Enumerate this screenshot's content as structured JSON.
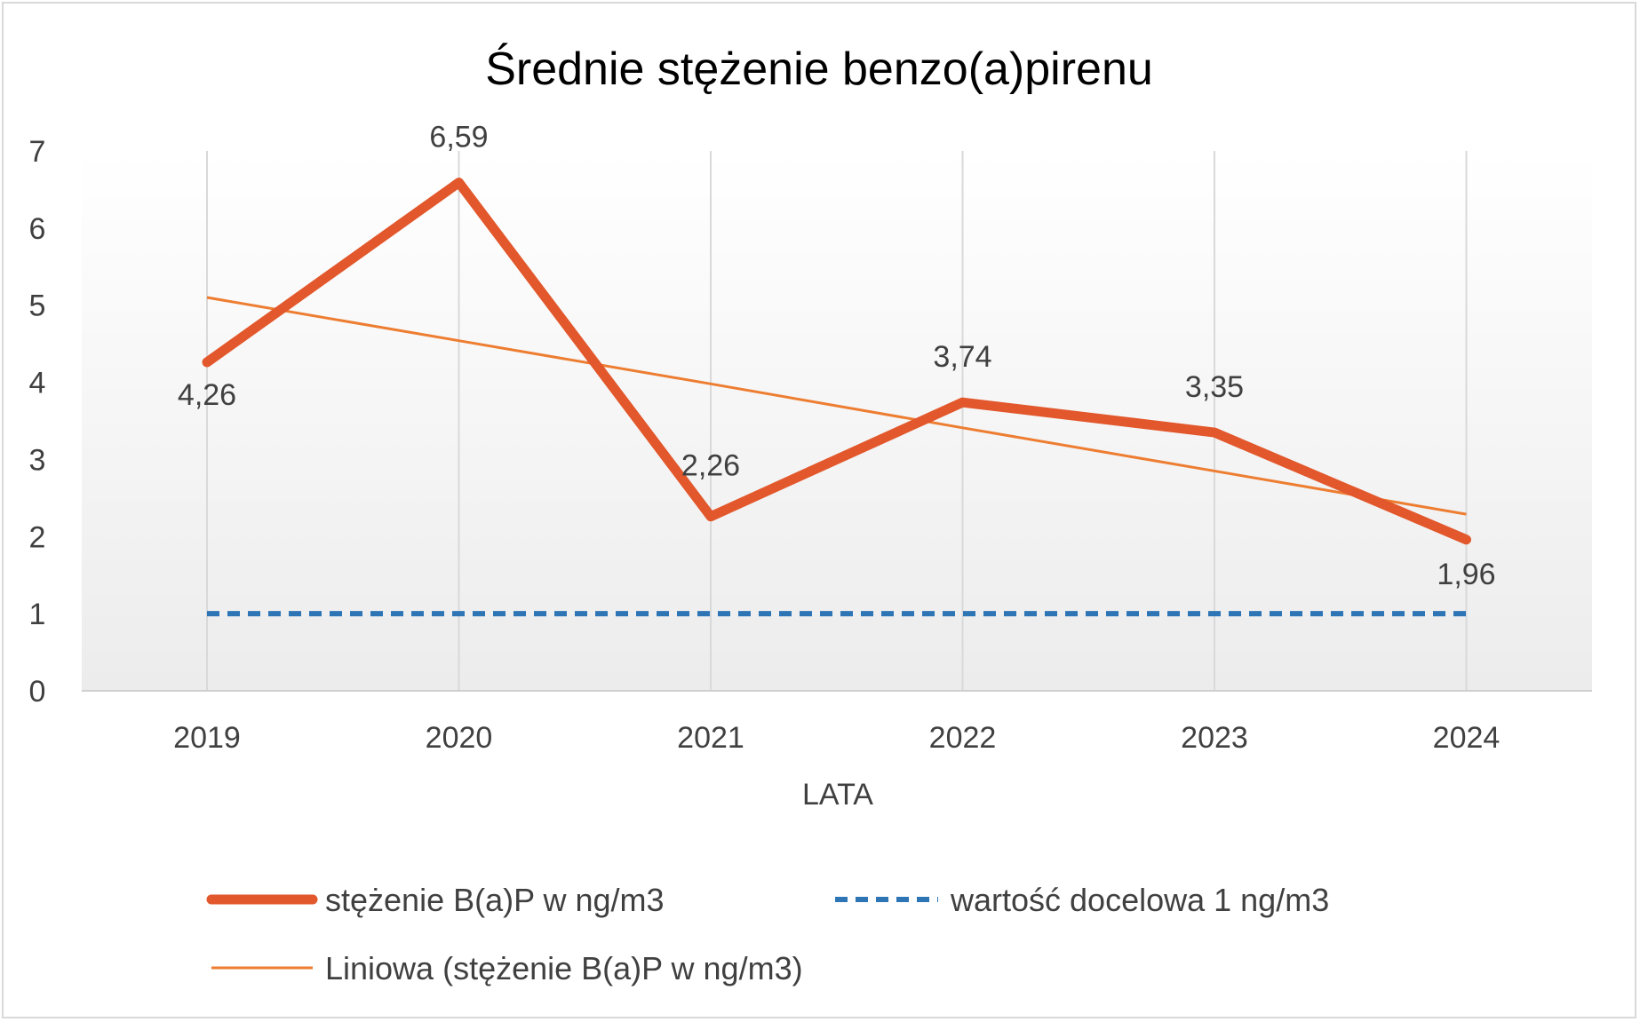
{
  "chart_data": {
    "type": "line",
    "title": "Średnie stężenie benzo(a)pirenu",
    "xlabel": "LATA",
    "ylabel": "",
    "categories": [
      "2019",
      "2020",
      "2021",
      "2022",
      "2023",
      "2024"
    ],
    "y_ticks": [
      "0",
      "1",
      "2",
      "3",
      "4",
      "5",
      "6",
      "7"
    ],
    "ylim": [
      0,
      7
    ],
    "grid": "vertical",
    "legend_position": "bottom",
    "series": [
      {
        "name": "stężenie B(a)P w ng/m3",
        "values": [
          4.26,
          6.59,
          2.26,
          3.74,
          3.35,
          1.96
        ],
        "data_labels": [
          "4,26",
          "6,59",
          "2,26",
          "3,74",
          "3,35",
          "1,96"
        ],
        "color": "#E2572B",
        "style": "solid-thick"
      },
      {
        "name": "wartość docelowa 1 ng/m3",
        "values": [
          1,
          1,
          1,
          1,
          1,
          1
        ],
        "color": "#2E75B6",
        "style": "dashed"
      },
      {
        "name": "Liniowa (stężenie B(a)P w ng/m3)",
        "values": [
          5.1,
          4.54,
          3.98,
          3.41,
          2.85,
          2.29
        ],
        "color": "#ED7D31",
        "style": "solid-thin"
      }
    ]
  }
}
